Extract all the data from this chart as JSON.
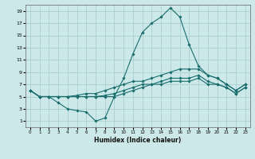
{
  "xlabel": "Humidex (Indice chaleur)",
  "bg_color": "#cce8e8",
  "grid_color": "#aacece",
  "line_color": "#1a6e6e",
  "xlim": [
    -0.5,
    23.5
  ],
  "ylim": [
    0,
    20
  ],
  "xticks": [
    0,
    1,
    2,
    3,
    4,
    5,
    6,
    7,
    8,
    9,
    10,
    11,
    12,
    13,
    14,
    15,
    16,
    17,
    18,
    19,
    20,
    21,
    22,
    23
  ],
  "yticks": [
    1,
    3,
    5,
    7,
    9,
    11,
    13,
    15,
    17,
    19
  ],
  "series1_x": [
    0,
    1,
    2,
    3,
    4,
    5,
    6,
    7,
    8,
    9,
    10,
    11,
    12,
    13,
    14,
    15,
    16,
    17,
    18,
    19,
    20,
    21,
    22,
    23
  ],
  "series1_y": [
    6,
    5,
    5,
    4,
    3,
    2.7,
    2.5,
    1,
    1.5,
    5,
    8,
    12,
    15.5,
    17,
    18,
    19.5,
    18,
    13.5,
    10,
    8.5,
    8,
    7,
    6,
    7
  ],
  "series2_x": [
    0,
    1,
    2,
    3,
    4,
    5,
    6,
    7,
    8,
    9,
    10,
    11,
    12,
    13,
    14,
    15,
    16,
    17,
    18,
    19,
    20,
    21,
    22,
    23
  ],
  "series2_y": [
    6,
    5,
    5,
    5,
    5,
    5.2,
    5.5,
    5.5,
    6,
    6.5,
    7,
    7.5,
    7.5,
    8,
    8.5,
    9,
    9.5,
    9.5,
    9.5,
    8.5,
    8,
    7,
    6,
    7
  ],
  "series3_x": [
    0,
    1,
    2,
    3,
    4,
    5,
    6,
    7,
    8,
    9,
    10,
    11,
    12,
    13,
    14,
    15,
    16,
    17,
    18,
    19,
    20,
    21,
    22,
    23
  ],
  "series3_y": [
    6,
    5,
    5,
    5,
    5,
    5,
    5,
    5,
    5.2,
    5.5,
    6,
    6.5,
    7,
    7,
    7.5,
    8,
    8,
    8,
    8.5,
    7.5,
    7,
    6.5,
    5.5,
    6.5
  ],
  "series4_x": [
    0,
    1,
    2,
    3,
    4,
    5,
    6,
    7,
    8,
    9,
    10,
    11,
    12,
    13,
    14,
    15,
    16,
    17,
    18,
    19,
    20,
    21,
    22,
    23
  ],
  "series4_y": [
    6,
    5,
    5,
    5,
    5,
    5,
    5,
    5,
    5,
    5,
    5.5,
    6,
    6.5,
    7,
    7,
    7.5,
    7.5,
    7.5,
    8,
    7,
    7,
    6.5,
    5.5,
    6.5
  ]
}
